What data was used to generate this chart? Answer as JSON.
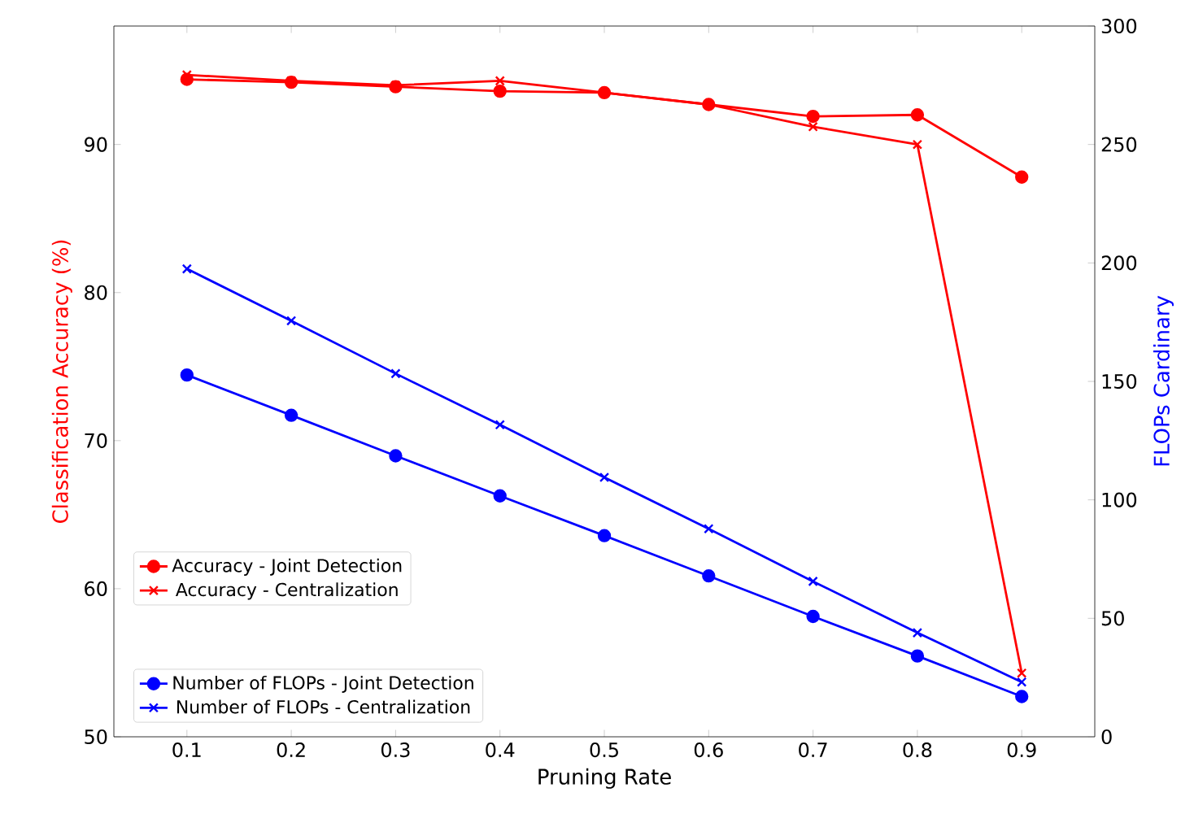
{
  "chart_data": {
    "type": "line",
    "xlabel": "Pruning Rate",
    "ylabel": "Classification Accuracy (%)",
    "y2label": "FLOPs Cardinary",
    "x": [
      0.1,
      0.2,
      0.3,
      0.4,
      0.5,
      0.6,
      0.7,
      0.8,
      0.9
    ],
    "xlim": [
      0.03,
      0.97
    ],
    "xticks": [
      0.1,
      0.2,
      0.3,
      0.4,
      0.5,
      0.6,
      0.7,
      0.8,
      0.9
    ],
    "ylim": [
      50,
      98
    ],
    "yticks": [
      50,
      60,
      70,
      80,
      90
    ],
    "y2lim": [
      0,
      300
    ],
    "y2ticks": [
      0,
      50,
      100,
      150,
      200,
      250,
      300
    ],
    "legend": "bottom left",
    "grid": false,
    "line_style": "solid",
    "series": [
      {
        "name": "Accuracy - Joint Detection",
        "color": "#ff0000",
        "marker": "circle",
        "values": [
          94.4,
          94.2,
          93.9,
          93.6,
          93.5,
          92.7,
          91.9,
          92.0,
          87.8
        ]
      },
      {
        "name": "Accuracy - Centralization",
        "color": "#ff0000",
        "marker": "cross",
        "values": [
          94.7,
          94.3,
          94.0,
          94.3,
          93.5,
          92.7,
          91.2,
          90.0,
          54.3
        ]
      },
      {
        "name": "Number of FLOPs - Joint Detection",
        "color": "#0000ff",
        "marker": "circle",
        "axis": "y2",
        "values": [
          152.7,
          135.7,
          118.6,
          101.7,
          84.9,
          67.9,
          50.8,
          34.1,
          17.0
        ]
      },
      {
        "name": "Number of FLOPs - Centralization",
        "color": "#0000ff",
        "marker": "cross",
        "axis": "y2",
        "values": [
          197.5,
          175.6,
          153.3,
          131.7,
          109.5,
          87.8,
          65.6,
          43.9,
          23.1
        ]
      }
    ]
  }
}
